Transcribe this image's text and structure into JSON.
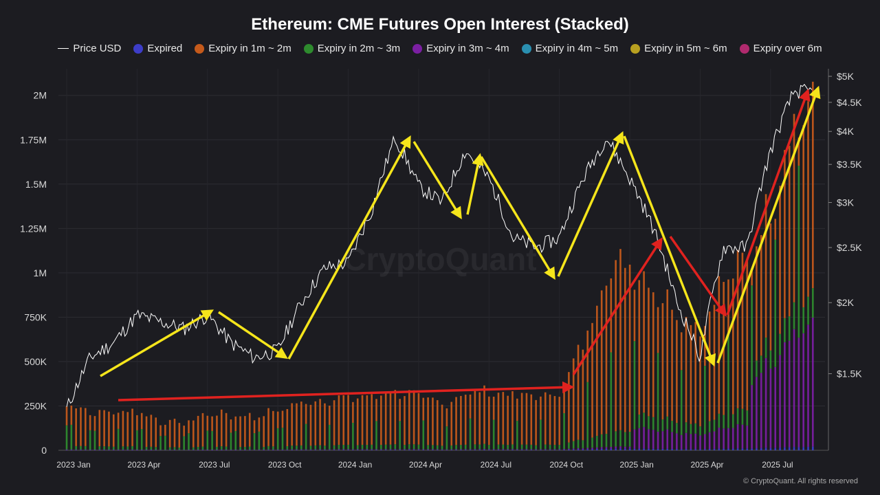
{
  "chart_data": {
    "type": "bar",
    "title": "Ethereum: CME Futures Open Interest (Stacked)",
    "watermark": "CryptoQuant",
    "copyright": "© CryptoQuant. All rights reserved",
    "x_ticks": [
      "2023 Jan",
      "2023 Apr",
      "2023 Jul",
      "2023 Oct",
      "2024 Jan",
      "2024 Apr",
      "2024 Jul",
      "2024 Oct",
      "2025 Jan",
      "2025 Apr",
      "2025 Jul"
    ],
    "y_left_ticks": [
      "0",
      "250K",
      "500K",
      "750K",
      "1M",
      "1.25M",
      "1.5M",
      "1.75M",
      "2M"
    ],
    "y_right_ticks": [
      "$1.5K",
      "$2K",
      "$2.5K",
      "$3K",
      "$3.5K",
      "$4K",
      "$4.5K",
      "$5K"
    ],
    "y_left_range": [
      0,
      2150000
    ],
    "y_right_log_scale": true,
    "grid": true,
    "legend_position": "top-center",
    "legend": [
      {
        "label": "Price USD",
        "color": "#ffffff",
        "kind": "line"
      },
      {
        "label": "Expired",
        "color": "#3d3dc8",
        "kind": "dot"
      },
      {
        "label": "Expiry in 1m ~ 2m",
        "color": "#c55a1b",
        "kind": "dot"
      },
      {
        "label": "Expiry in 2m ~ 3m",
        "color": "#2e8b2e",
        "kind": "dot"
      },
      {
        "label": "Expiry in 3m ~ 4m",
        "color": "#7b1fa2",
        "kind": "dot"
      },
      {
        "label": "Expiry in 4m ~ 5m",
        "color": "#2a8fb0",
        "kind": "dot"
      },
      {
        "label": "Expiry in 5m ~ 6m",
        "color": "#b8a020",
        "kind": "dot"
      },
      {
        "label": "Expiry over 6m",
        "color": "#b02a6e",
        "kind": "dot"
      }
    ],
    "open_interest_total": [
      {
        "x": "2023-01",
        "y": 300000
      },
      {
        "x": "2023-02",
        "y": 240000
      },
      {
        "x": "2023-03",
        "y": 230000
      },
      {
        "x": "2023-04",
        "y": 250000
      },
      {
        "x": "2023-05",
        "y": 180000
      },
      {
        "x": "2023-06",
        "y": 170000
      },
      {
        "x": "2023-07",
        "y": 230000
      },
      {
        "x": "2023-08",
        "y": 220000
      },
      {
        "x": "2023-09",
        "y": 210000
      },
      {
        "x": "2023-10",
        "y": 250000
      },
      {
        "x": "2023-11",
        "y": 290000
      },
      {
        "x": "2023-12",
        "y": 310000
      },
      {
        "x": "2024-01",
        "y": 320000
      },
      {
        "x": "2024-02",
        "y": 330000
      },
      {
        "x": "2024-03",
        "y": 360000
      },
      {
        "x": "2024-04",
        "y": 330000
      },
      {
        "x": "2024-05",
        "y": 280000
      },
      {
        "x": "2024-06",
        "y": 350000
      },
      {
        "x": "2024-07",
        "y": 360000
      },
      {
        "x": "2024-08",
        "y": 340000
      },
      {
        "x": "2024-09",
        "y": 330000
      },
      {
        "x": "2024-10",
        "y": 350000
      },
      {
        "x": "2024-11",
        "y": 650000
      },
      {
        "x": "2024-12",
        "y": 1100000
      },
      {
        "x": "2025-01",
        "y": 1150000
      },
      {
        "x": "2025-02",
        "y": 1000000
      },
      {
        "x": "2025-03",
        "y": 850000
      },
      {
        "x": "2025-04",
        "y": 750000
      },
      {
        "x": "2025-05",
        "y": 1050000
      },
      {
        "x": "2025-06",
        "y": 1150000
      },
      {
        "x": "2025-07",
        "y": 1500000
      },
      {
        "x": "2025-08",
        "y": 2050000
      }
    ],
    "price_usd": [
      {
        "x": "2023-01",
        "y": 1300
      },
      {
        "x": "2023-02",
        "y": 1600
      },
      {
        "x": "2023-03",
        "y": 1700
      },
      {
        "x": "2023-04",
        "y": 1900
      },
      {
        "x": "2023-05",
        "y": 1850
      },
      {
        "x": "2023-06",
        "y": 1800
      },
      {
        "x": "2023-07",
        "y": 1900
      },
      {
        "x": "2023-08",
        "y": 1700
      },
      {
        "x": "2023-09",
        "y": 1600
      },
      {
        "x": "2023-10",
        "y": 1650
      },
      {
        "x": "2023-11",
        "y": 2000
      },
      {
        "x": "2023-12",
        "y": 2300
      },
      {
        "x": "2024-01",
        "y": 2350
      },
      {
        "x": "2024-02",
        "y": 2900
      },
      {
        "x": "2024-03",
        "y": 3900
      },
      {
        "x": "2024-04",
        "y": 3200
      },
      {
        "x": "2024-05",
        "y": 3000
      },
      {
        "x": "2024-06",
        "y": 3700
      },
      {
        "x": "2024-07",
        "y": 3300
      },
      {
        "x": "2024-08",
        "y": 2600
      },
      {
        "x": "2024-09",
        "y": 2500
      },
      {
        "x": "2024-10",
        "y": 2600
      },
      {
        "x": "2024-11",
        "y": 3300
      },
      {
        "x": "2024-12",
        "y": 3900
      },
      {
        "x": "2025-01",
        "y": 3300
      },
      {
        "x": "2025-02",
        "y": 2700
      },
      {
        "x": "2025-03",
        "y": 2000
      },
      {
        "x": "2025-04",
        "y": 1600
      },
      {
        "x": "2025-05",
        "y": 2500
      },
      {
        "x": "2025-06",
        "y": 2500
      },
      {
        "x": "2025-07",
        "y": 3700
      },
      {
        "x": "2025-08",
        "y": 4700
      }
    ]
  }
}
